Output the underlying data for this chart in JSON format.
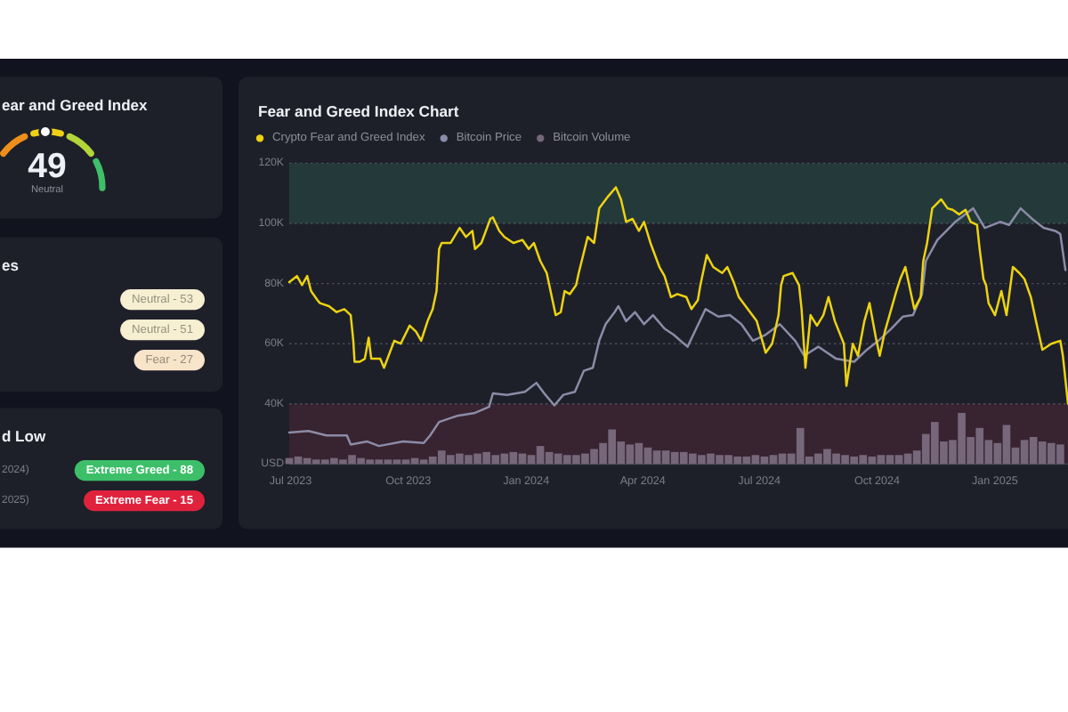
{
  "chart_data": [
    {
      "type": "other",
      "title": "ear and Greed Index",
      "annotations": [
        "49",
        "Neutral"
      ]
    },
    {
      "type": "other",
      "title": "es",
      "annotations": [
        "Neutral - 53",
        "Neutral - 51",
        "Fear - 27"
      ],
      "colors": [
        "#f7efd2",
        "#f7efd2",
        "#f8e4c9"
      ]
    },
    {
      "type": "other",
      "title": "d Low",
      "annotations": [
        "2024)",
        "Extreme Greed - 88",
        "2025)",
        "Extreme Fear - 15"
      ],
      "colors": [
        null,
        "#3dbf69",
        null,
        "#e0223c"
      ]
    },
    {
      "type": "line",
      "title": "Fear and Greed Index Chart",
      "legend": "top left",
      "grid": "y",
      "xlim": [
        "2023-06-30",
        "2025-02-27"
      ],
      "xticks": [
        {
          "value": "2023-07-01",
          "label": "Jul 2023"
        },
        {
          "value": "2023-10-01",
          "label": "Oct 2023"
        },
        {
          "value": "2024-01-01",
          "label": "Jan 2024"
        },
        {
          "value": "2024-04-01",
          "label": "Apr 2024"
        },
        {
          "value": "2024-07-01",
          "label": "Jul 2024"
        },
        {
          "value": "2024-10-01",
          "label": "Oct 2024"
        },
        {
          "value": "2025-01-01",
          "label": "Jan 2025"
        }
      ],
      "ylim": [
        20000,
        120000
      ],
      "yticks": [
        {
          "value": 20000,
          "label": "USD"
        },
        {
          "value": 40000,
          "label": "40K"
        },
        {
          "value": 60000,
          "label": "60K"
        },
        {
          "value": 80000,
          "label": "80K"
        },
        {
          "value": 100000,
          "label": "100K"
        },
        {
          "value": 120000,
          "label": "120K"
        }
      ],
      "bands": [
        {
          "axis": "y",
          "from": 100000,
          "to": 120000,
          "color": "#243a3a"
        },
        {
          "axis": "y",
          "from": 20000,
          "to": 40000,
          "color": "#382330"
        }
      ],
      "series": [
        {
          "name": "Crypto Fear and Greed Index",
          "color": "#ecd311",
          "x": [
            "2023-06-30",
            "2023-07-06",
            "2023-07-10",
            "2023-07-14",
            "2023-07-17",
            "2023-07-22",
            "2023-07-24",
            "2023-07-31",
            "2023-08-06",
            "2023-08-12",
            "2023-08-17",
            "2023-08-19",
            "2023-08-20",
            "2023-08-24",
            "2023-08-28",
            "2023-08-31",
            "2023-09-02",
            "2023-09-09",
            "2023-09-12",
            "2023-09-16",
            "2023-09-20",
            "2023-09-25",
            "2023-10-02",
            "2023-10-07",
            "2023-10-11",
            "2023-10-16",
            "2023-10-20",
            "2023-10-23",
            "2023-10-25",
            "2023-10-27",
            "2023-11-03",
            "2023-11-10",
            "2023-11-15",
            "2023-11-20",
            "2023-11-22",
            "2023-11-27",
            "2023-12-04",
            "2023-12-06",
            "2023-12-11",
            "2023-12-15",
            "2023-12-22",
            "2023-12-29",
            "2024-01-03",
            "2024-01-07",
            "2024-01-12",
            "2024-01-17",
            "2024-01-21",
            "2024-01-24",
            "2024-01-28",
            "2024-01-31",
            "2024-02-04",
            "2024-02-09",
            "2024-02-11",
            "2024-02-18",
            "2024-02-23",
            "2024-02-27",
            "2024-03-05",
            "2024-03-11",
            "2024-03-15",
            "2024-03-19",
            "2024-03-24",
            "2024-03-29",
            "2024-04-02",
            "2024-04-07",
            "2024-04-14",
            "2024-04-18",
            "2024-04-23",
            "2024-04-28",
            "2024-05-05",
            "2024-05-09",
            "2024-05-14",
            "2024-05-16",
            "2024-05-21",
            "2024-05-26",
            "2024-06-02",
            "2024-06-06",
            "2024-06-11",
            "2024-06-15",
            "2024-06-22",
            "2024-06-29",
            "2024-07-04",
            "2024-07-06",
            "2024-07-11",
            "2024-07-16",
            "2024-07-18",
            "2024-07-20",
            "2024-07-27",
            "2024-08-01",
            "2024-08-03",
            "2024-08-06",
            "2024-08-10",
            "2024-08-15",
            "2024-08-20",
            "2024-08-24",
            "2024-08-29",
            "2024-09-05",
            "2024-09-07",
            "2024-09-12",
            "2024-09-16",
            "2024-09-21",
            "2024-09-25",
            "2024-09-30",
            "2024-10-03",
            "2024-10-07",
            "2024-10-12",
            "2024-10-16",
            "2024-10-19",
            "2024-10-23",
            "2024-10-30",
            "2024-11-04",
            "2024-11-06",
            "2024-11-09",
            "2024-11-13",
            "2024-11-20",
            "2024-11-25",
            "2024-11-29",
            "2024-12-04",
            "2024-12-09",
            "2024-12-13",
            "2024-12-18",
            "2024-12-20",
            "2024-12-23",
            "2024-12-25",
            "2024-12-27",
            "2025-01-01",
            "2025-01-06",
            "2025-01-10",
            "2025-01-15",
            "2025-01-20",
            "2025-01-24",
            "2025-01-29",
            "2025-02-02",
            "2025-02-07",
            "2025-02-14",
            "2025-02-21",
            "2025-02-23",
            "2025-02-27"
          ],
          "values": [
            80500,
            82500,
            79500,
            82500,
            77500,
            74500,
            73500,
            72500,
            70500,
            71500,
            69500,
            61000,
            54000,
            54000,
            55000,
            62000,
            55000,
            55000,
            52000,
            56500,
            61000,
            60000,
            66000,
            64000,
            61000,
            67500,
            71500,
            77500,
            91500,
            93500,
            93500,
            98500,
            95500,
            97500,
            91500,
            93500,
            101500,
            102000,
            97500,
            95500,
            93500,
            94500,
            91500,
            93500,
            87500,
            83500,
            75500,
            69500,
            70500,
            77500,
            76500,
            79500,
            83500,
            95500,
            93500,
            105000,
            109000,
            112000,
            108000,
            100500,
            101500,
            97500,
            100500,
            93500,
            85500,
            82500,
            75500,
            76500,
            75500,
            71500,
            74500,
            79500,
            89500,
            85500,
            83500,
            85500,
            80500,
            75500,
            71500,
            67500,
            60000,
            57000,
            60000,
            69500,
            79500,
            82500,
            83500,
            79500,
            71500,
            52000,
            69500,
            66000,
            69500,
            75500,
            67500,
            60000,
            46000,
            60000,
            56000,
            67500,
            73500,
            62000,
            56000,
            64000,
            71500,
            77500,
            81500,
            85500,
            71500,
            75500,
            87500,
            93500,
            105000,
            108000,
            105000,
            104500,
            103000,
            104500,
            100500,
            99500,
            91500,
            81500,
            79500,
            73500,
            69500,
            77500,
            69500,
            85500,
            83500,
            81500,
            75500,
            67500,
            58000,
            60000,
            61000,
            56000,
            40000
          ]
        },
        {
          "name": "Bitcoin Price",
          "color": "#8b8ca8",
          "x": [
            "2023-06-30",
            "2023-07-15",
            "2023-07-29",
            "2023-08-14",
            "2023-08-17",
            "2023-08-30",
            "2023-09-08",
            "2023-09-27",
            "2023-10-13",
            "2023-10-18",
            "2023-10-25",
            "2023-11-08",
            "2023-11-22",
            "2023-12-03",
            "2023-12-06",
            "2023-12-17",
            "2023-12-31",
            "2024-01-09",
            "2024-01-16",
            "2024-01-23",
            "2024-01-30",
            "2024-02-08",
            "2024-02-15",
            "2024-02-22",
            "2024-02-27",
            "2024-03-03",
            "2024-03-10",
            "2024-03-13",
            "2024-03-19",
            "2024-03-26",
            "2024-04-02",
            "2024-04-09",
            "2024-04-18",
            "2024-04-25",
            "2024-05-06",
            "2024-05-20",
            "2024-05-30",
            "2024-06-08",
            "2024-06-17",
            "2024-06-26",
            "2024-07-06",
            "2024-07-17",
            "2024-07-29",
            "2024-08-05",
            "2024-08-16",
            "2024-08-30",
            "2024-09-13",
            "2024-09-23",
            "2024-10-02",
            "2024-10-12",
            "2024-10-21",
            "2024-10-29",
            "2024-11-05",
            "2024-11-08",
            "2024-11-17",
            "2024-12-01",
            "2024-12-15",
            "2024-12-24",
            "2025-01-05",
            "2025-01-12",
            "2025-01-21",
            "2025-01-30",
            "2025-02-08",
            "2025-02-17",
            "2025-02-21",
            "2025-02-25"
          ],
          "values": [
            30500,
            31000,
            29500,
            29500,
            26500,
            27500,
            26000,
            27500,
            27000,
            29500,
            34000,
            36000,
            37000,
            39000,
            43500,
            43000,
            44000,
            47000,
            43000,
            39500,
            43000,
            44000,
            51000,
            52000,
            61000,
            66500,
            70500,
            72500,
            67500,
            70500,
            66500,
            69500,
            65000,
            63000,
            59000,
            71500,
            69000,
            69500,
            66500,
            61000,
            63000,
            66500,
            61000,
            56000,
            59000,
            55000,
            54000,
            58000,
            61000,
            65000,
            69000,
            69500,
            76500,
            87500,
            94500,
            100500,
            105000,
            98500,
            100500,
            99500,
            105000,
            101500,
            98500,
            97500,
            96500,
            84500
          ]
        },
        {
          "name": "Bitcoin Volume",
          "type": "bar",
          "color": "#76677a",
          "x": [
            "2023-06-30",
            "2023-07-07",
            "2023-07-14",
            "2023-07-21",
            "2023-07-28",
            "2023-08-04",
            "2023-08-11",
            "2023-08-18",
            "2023-08-25",
            "2023-09-01",
            "2023-09-08",
            "2023-09-15",
            "2023-09-22",
            "2023-09-29",
            "2023-10-06",
            "2023-10-13",
            "2023-10-20",
            "2023-10-27",
            "2023-11-03",
            "2023-11-10",
            "2023-11-17",
            "2023-11-24",
            "2023-12-01",
            "2023-12-08",
            "2023-12-15",
            "2023-12-22",
            "2023-12-29",
            "2024-01-05",
            "2024-01-12",
            "2024-01-19",
            "2024-01-26",
            "2024-02-02",
            "2024-02-09",
            "2024-02-16",
            "2024-02-23",
            "2024-03-01",
            "2024-03-08",
            "2024-03-15",
            "2024-03-22",
            "2024-03-29",
            "2024-04-05",
            "2024-04-12",
            "2024-04-19",
            "2024-04-26",
            "2024-05-03",
            "2024-05-10",
            "2024-05-17",
            "2024-05-24",
            "2024-05-31",
            "2024-06-07",
            "2024-06-14",
            "2024-06-21",
            "2024-06-28",
            "2024-07-05",
            "2024-07-12",
            "2024-07-19",
            "2024-07-26",
            "2024-08-02",
            "2024-08-09",
            "2024-08-16",
            "2024-08-23",
            "2024-08-30",
            "2024-09-06",
            "2024-09-13",
            "2024-09-20",
            "2024-09-27",
            "2024-10-04",
            "2024-10-11",
            "2024-10-18",
            "2024-10-25",
            "2024-11-01",
            "2024-11-08",
            "2024-11-15",
            "2024-11-22",
            "2024-11-29",
            "2024-12-06",
            "2024-12-13",
            "2024-12-20",
            "2024-12-27",
            "2025-01-03",
            "2025-01-10",
            "2025-01-17",
            "2025-01-24",
            "2025-01-31",
            "2025-02-07",
            "2025-02-14",
            "2025-02-21"
          ],
          "values": [
            22000,
            22500,
            22000,
            21500,
            21500,
            22000,
            21500,
            23000,
            22000,
            21500,
            21500,
            21500,
            21500,
            21500,
            22000,
            21500,
            22500,
            24500,
            23000,
            23500,
            23000,
            23500,
            24000,
            23000,
            23500,
            24000,
            23500,
            23000,
            26000,
            24000,
            23500,
            23000,
            23000,
            23500,
            25000,
            27000,
            31500,
            27500,
            26500,
            27000,
            25500,
            24500,
            24500,
            24000,
            24000,
            23500,
            23000,
            23500,
            23000,
            23000,
            22500,
            22500,
            23000,
            22500,
            23000,
            23500,
            23500,
            32000,
            22500,
            23500,
            25000,
            23500,
            23000,
            22500,
            23000,
            22500,
            23000,
            23000,
            23000,
            23500,
            24500,
            30000,
            34000,
            27500,
            28000,
            37000,
            29000,
            32000,
            28000,
            27000,
            33000,
            25500,
            28000,
            29000,
            27500,
            27000,
            26500
          ]
        }
      ]
    }
  ]
}
